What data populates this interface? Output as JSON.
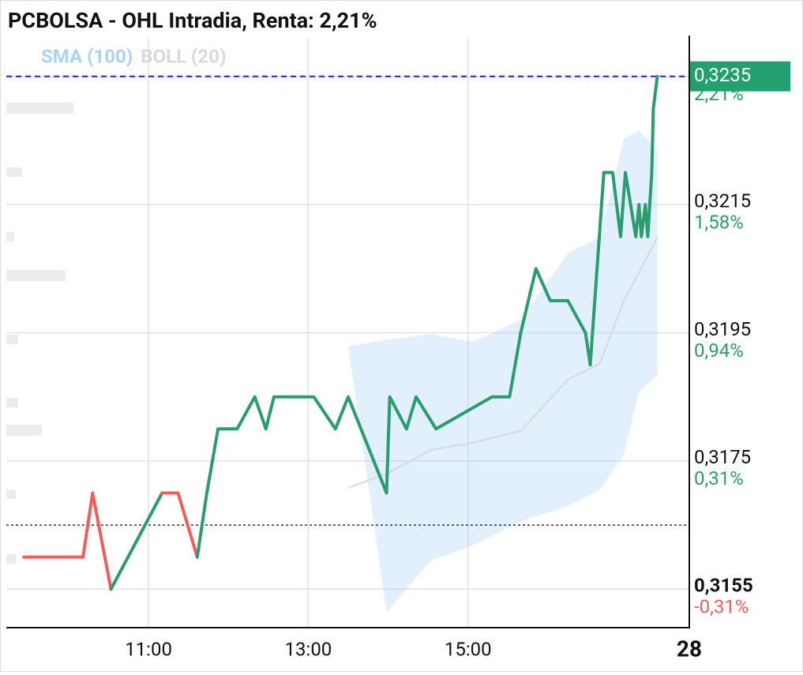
{
  "chart_data": {
    "type": "line",
    "title": "PCBOLSA - OHL Intradia, Renta: 2,21%",
    "x": [
      9.44,
      10.18,
      10.3,
      10.53,
      11.17,
      11.37,
      11.61,
      11.73,
      11.87,
      12.11,
      12.33,
      12.47,
      12.57,
      13.07,
      13.34,
      13.5,
      13.98,
      14.02,
      14.23,
      14.35,
      14.6,
      15.3,
      15.52,
      15.66,
      15.85,
      16.03,
      16.25,
      16.47,
      16.53,
      16.7,
      16.81,
      16.91,
      16.97,
      17.1,
      17.14,
      17.17,
      17.22,
      17.25,
      17.3,
      17.32,
      17.37
    ],
    "series": [
      {
        "values": [
          0.316,
          0.316,
          0.317,
          0.3155,
          0.317,
          0.317,
          0.316,
          0.317,
          0.318,
          0.318,
          0.3185,
          0.318,
          0.3185,
          0.3185,
          0.318,
          0.3185,
          0.317,
          0.3185,
          0.318,
          0.3185,
          0.318,
          0.3185,
          0.3185,
          0.3195,
          0.3205,
          0.32,
          0.32,
          0.3195,
          0.319,
          0.322,
          0.322,
          0.321,
          0.322,
          0.321,
          0.3215,
          0.321,
          0.3215,
          0.321,
          0.322,
          0.323,
          0.3235
        ],
        "colors": [
          "#f25c5c",
          "#f25c5c",
          "#f25c5c",
          "#f25c5c",
          "#2a9d6e",
          "#f25c5c",
          "#f25c5c",
          "#2a9d6e",
          "#2a9d6e",
          "#2a9d6e",
          "#2a9d6e",
          "#2a9d6e",
          "#2a9d6e",
          "#2a9d6e",
          "#2a9d6e",
          "#2a9d6e",
          "#2a9d6e",
          "#2a9d6e",
          "#2a9d6e",
          "#2a9d6e",
          "#2a9d6e",
          "#2a9d6e",
          "#2a9d6e",
          "#2a9d6e",
          "#2a9d6e",
          "#2a9d6e",
          "#2a9d6e",
          "#2a9d6e",
          "#2a9d6e",
          "#2a9d6e",
          "#2a9d6e",
          "#2a9d6e",
          "#2a9d6e",
          "#2a9d6e",
          "#2a9d6e",
          "#2a9d6e",
          "#2a9d6e",
          "#2a9d6e",
          "#2a9d6e",
          "#2a9d6e",
          "#2a9d6e"
        ]
      }
    ],
    "indicators": [
      {
        "name": "SMA (100)",
        "color": "#a9d3f5",
        "kind": "band",
        "x": [
          13.5,
          13.98,
          14.53,
          15.07,
          15.66,
          16.25,
          16.65,
          16.95,
          17.14,
          17.37
        ],
        "upper": [
          0.31929,
          0.31939,
          0.31948,
          0.31936,
          0.3197,
          0.32074,
          0.32099,
          0.32253,
          0.32265,
          0.32234
        ],
        "lower": [
          0.31929,
          0.31514,
          0.31594,
          0.31619,
          0.31656,
          0.3168,
          0.31705,
          0.3176,
          0.31859,
          0.31883
        ]
      },
      {
        "name": "BOLL (20)",
        "color": "#d9d9d9",
        "kind": "line",
        "x": [
          13.5,
          13.98,
          14.53,
          15.07,
          15.66,
          16.25,
          16.65,
          16.95,
          17.14,
          17.37
        ],
        "values": [
          0.31708,
          0.3173,
          0.31767,
          0.31779,
          0.31797,
          0.31877,
          0.31902,
          0.32,
          0.32044,
          0.32099
        ]
      }
    ],
    "xlim": [
      9.22,
      17.77
    ],
    "xticks": [
      {
        "value": 11,
        "label": "11:00"
      },
      {
        "value": 13,
        "label": "13:00"
      },
      {
        "value": 15,
        "label": "15:00"
      },
      {
        "value": 17.77,
        "label": "28"
      }
    ],
    "ylim": [
      0.3149,
      0.3241
    ],
    "yticks": [
      {
        "value": 0.3155,
        "label": "0,3155"
      },
      {
        "value": 0.3175,
        "label": "0,3175"
      },
      {
        "value": 0.3195,
        "label": "0,3195"
      },
      {
        "value": 0.3215,
        "label": "0,3215"
      },
      {
        "value": 0.3235,
        "label": "0,3235"
      }
    ],
    "pct_labels": [
      "-0,31%",
      "0,31%",
      "0,94%",
      "1,58%",
      "2,21%"
    ],
    "previous_close": 0.3165,
    "last_price": 0.3235,
    "last_price_label": "0,3235",
    "grid": true
  }
}
